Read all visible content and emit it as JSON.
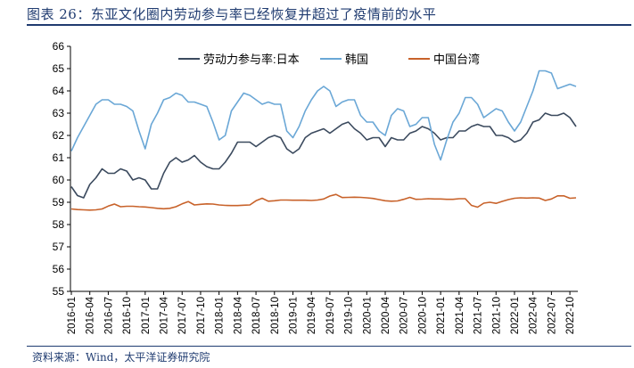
{
  "header": {
    "title": "图表 26：东亚文化圈内劳动参与率已经恢复并超过了疫情前的水平"
  },
  "footer": {
    "source": "资料来源：Wind，太平洋证券研究院"
  },
  "colors": {
    "japan": "#3b4a5e",
    "korea": "#6aa7d6",
    "taiwan": "#c8622a",
    "frame": "#1f3b70"
  },
  "chart_data": {
    "type": "line",
    "ylim": [
      55,
      66
    ],
    "yticks": [
      55,
      56,
      57,
      58,
      59,
      60,
      61,
      62,
      63,
      64,
      65,
      66
    ],
    "x": [
      "2016-01",
      "2016-02",
      "2016-03",
      "2016-04",
      "2016-05",
      "2016-06",
      "2016-07",
      "2016-08",
      "2016-09",
      "2016-10",
      "2016-11",
      "2016-12",
      "2017-01",
      "2017-02",
      "2017-03",
      "2017-04",
      "2017-05",
      "2017-06",
      "2017-07",
      "2017-08",
      "2017-09",
      "2017-10",
      "2017-11",
      "2017-12",
      "2018-01",
      "2018-02",
      "2018-03",
      "2018-04",
      "2018-05",
      "2018-06",
      "2018-07",
      "2018-08",
      "2018-09",
      "2018-10",
      "2018-11",
      "2018-12",
      "2019-01",
      "2019-02",
      "2019-03",
      "2019-04",
      "2019-05",
      "2019-06",
      "2019-07",
      "2019-08",
      "2019-09",
      "2019-10",
      "2019-11",
      "2019-12",
      "2020-01",
      "2020-02",
      "2020-03",
      "2020-04",
      "2020-05",
      "2020-06",
      "2020-07",
      "2020-08",
      "2020-09",
      "2020-10",
      "2020-11",
      "2020-12",
      "2021-01",
      "2021-02",
      "2021-03",
      "2021-04",
      "2021-05",
      "2021-06",
      "2021-07",
      "2021-08",
      "2021-09",
      "2021-10",
      "2021-11",
      "2021-12",
      "2022-01",
      "2022-02",
      "2022-03",
      "2022-04",
      "2022-05",
      "2022-06",
      "2022-07",
      "2022-08",
      "2022-09",
      "2022-10",
      "2022-11"
    ],
    "xtick_labels": [
      "2016-01",
      "2016-04",
      "2016-07",
      "2016-10",
      "2017-01",
      "2017-04",
      "2017-07",
      "2017-10",
      "2018-01",
      "2018-04",
      "2018-07",
      "2018-10",
      "2019-01",
      "2019-04",
      "2019-07",
      "2019-10",
      "2020-01",
      "2020-04",
      "2020-07",
      "2020-10",
      "2021-01",
      "2021-04",
      "2021-07",
      "2021-10",
      "2022-01",
      "2022-04",
      "2022-07",
      "2022-10"
    ],
    "legend": {
      "placement": "top"
    },
    "series": [
      {
        "name": "劳动力参与率:日本",
        "color": "#3b4a5e",
        "values": [
          59.7,
          59.3,
          59.2,
          59.8,
          60.1,
          60.5,
          60.3,
          60.3,
          60.5,
          60.4,
          60.0,
          60.1,
          60.0,
          59.6,
          59.6,
          60.3,
          60.8,
          61.0,
          60.8,
          60.9,
          61.1,
          60.8,
          60.6,
          60.5,
          60.5,
          60.8,
          61.2,
          61.7,
          61.7,
          61.7,
          61.5,
          61.7,
          61.9,
          62.0,
          61.9,
          61.4,
          61.2,
          61.4,
          61.9,
          62.1,
          62.2,
          62.3,
          62.1,
          62.3,
          62.5,
          62.6,
          62.3,
          62.1,
          61.8,
          61.9,
          61.9,
          61.5,
          61.9,
          61.8,
          61.8,
          62.1,
          62.2,
          62.4,
          62.3,
          62.1,
          61.8,
          61.9,
          61.9,
          62.2,
          62.2,
          62.4,
          62.5,
          62.4,
          62.4,
          62.0,
          62.0,
          61.9,
          61.7,
          61.8,
          62.1,
          62.6,
          62.7,
          63.0,
          62.9,
          62.9,
          63.0,
          62.8,
          62.4
        ]
      },
      {
        "name": "韩国",
        "color": "#6aa7d6",
        "values": [
          61.3,
          61.9,
          62.4,
          62.9,
          63.4,
          63.6,
          63.6,
          63.4,
          63.4,
          63.3,
          63.1,
          62.2,
          61.4,
          62.5,
          63.0,
          63.6,
          63.7,
          63.9,
          63.8,
          63.5,
          63.5,
          63.4,
          63.3,
          62.6,
          61.8,
          62.0,
          63.1,
          63.5,
          63.9,
          63.8,
          63.6,
          63.4,
          63.5,
          63.4,
          63.4,
          62.2,
          61.9,
          62.4,
          63.1,
          63.6,
          64.0,
          64.2,
          64.0,
          63.3,
          63.5,
          63.6,
          63.6,
          62.9,
          62.6,
          62.6,
          62.2,
          62.0,
          62.9,
          63.2,
          63.1,
          62.4,
          62.5,
          62.8,
          62.8,
          61.6,
          60.9,
          61.8,
          62.6,
          63.0,
          63.7,
          63.7,
          63.4,
          62.8,
          63.0,
          63.2,
          63.1,
          62.6,
          62.2,
          62.6,
          63.3,
          64.0,
          64.9,
          64.9,
          64.8,
          64.1,
          64.2,
          64.3,
          64.2
        ]
      },
      {
        "name": "中国台湾",
        "color": "#c8622a",
        "values": [
          58.7,
          58.67,
          58.66,
          58.65,
          58.66,
          58.7,
          58.83,
          58.92,
          58.8,
          58.82,
          58.82,
          58.8,
          58.79,
          58.76,
          58.73,
          58.71,
          58.73,
          58.8,
          58.93,
          59.03,
          58.88,
          58.91,
          58.93,
          58.92,
          58.88,
          58.86,
          58.85,
          58.85,
          58.87,
          58.88,
          59.07,
          59.18,
          59.05,
          59.07,
          59.1,
          59.1,
          59.09,
          59.09,
          59.09,
          59.08,
          59.1,
          59.15,
          59.28,
          59.35,
          59.21,
          59.22,
          59.23,
          59.22,
          59.2,
          59.17,
          59.12,
          59.07,
          59.05,
          59.06,
          59.13,
          59.22,
          59.13,
          59.14,
          59.16,
          59.15,
          59.15,
          59.13,
          59.13,
          59.16,
          59.16,
          58.86,
          58.78,
          58.96,
          59.0,
          58.95,
          59.04,
          59.12,
          59.18,
          59.2,
          59.19,
          59.2,
          59.19,
          59.08,
          59.15,
          59.29,
          59.29,
          59.18,
          59.2
        ]
      }
    ]
  }
}
